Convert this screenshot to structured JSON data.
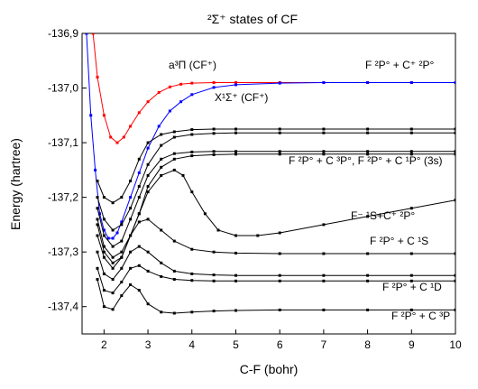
{
  "chart_data": {
    "type": "line",
    "title": "²Σ⁺ states of CF",
    "xlabel": "C-F (bohr)",
    "ylabel": "Energy (hartree)",
    "xlim": [
      1.5,
      10
    ],
    "ylim": [
      -137.45,
      -136.9
    ],
    "xticks": [
      2,
      3,
      4,
      5,
      6,
      7,
      8,
      9,
      10
    ],
    "yticks": [
      -136.9,
      -137.0,
      -137.1,
      -137.2,
      -137.3,
      -137.4
    ],
    "xtick_labels": [
      "2",
      "3",
      "4",
      "5",
      "6",
      "7",
      "8",
      "9",
      "10"
    ],
    "ytick_labels": [
      "-136,9",
      "-137,0",
      "-137,1",
      "-137,2",
      "-137,3",
      "-137,4"
    ],
    "grid": false,
    "series": [
      {
        "name": "a³Π (CF⁺)",
        "color": "#ff0000",
        "x": [
          1.75,
          1.85,
          2.0,
          2.15,
          2.3,
          2.45,
          2.6,
          2.8,
          3.0,
          3.25,
          3.5,
          3.75,
          4.0,
          4.5,
          5.0,
          6.0,
          7.0,
          8.0,
          9.0,
          10.0
        ],
        "y": [
          -136.9,
          -136.98,
          -137.05,
          -137.09,
          -137.1,
          -137.09,
          -137.07,
          -137.045,
          -137.025,
          -137.008,
          -136.998,
          -136.993,
          -136.991,
          -136.99,
          -136.99,
          -136.99,
          -136.99,
          -136.99,
          -136.99,
          -136.99
        ]
      },
      {
        "name": "X¹Σ⁺ (CF⁺)",
        "color": "#0000ff",
        "x": [
          1.6,
          1.7,
          1.8,
          1.9,
          2.0,
          2.1,
          2.2,
          2.3,
          2.4,
          2.6,
          2.8,
          3.0,
          3.25,
          3.5,
          3.75,
          4.0,
          4.5,
          5.0,
          6.0,
          7.0,
          8.0,
          9.0,
          10.0
        ],
        "y": [
          -136.9,
          -137.05,
          -137.15,
          -137.23,
          -137.26,
          -137.275,
          -137.275,
          -137.265,
          -137.245,
          -137.2,
          -137.155,
          -137.11,
          -137.07,
          -137.042,
          -137.025,
          -137.012,
          -136.999,
          -136.994,
          -136.991,
          -136.99,
          -136.99,
          -136.99,
          -136.99
        ]
      },
      {
        "color": "#000000",
        "x": [
          1.85,
          2.0,
          2.2,
          2.4,
          2.6,
          2.8,
          3.0,
          3.3,
          3.6,
          4.0,
          4.5,
          5.0,
          6.0,
          7.0,
          8.0,
          9.0,
          10.0
        ],
        "y": [
          -137.17,
          -137.2,
          -137.21,
          -137.2,
          -137.17,
          -137.13,
          -137.1,
          -137.085,
          -137.08,
          -137.076,
          -137.075,
          -137.075,
          -137.075,
          -137.075,
          -137.075,
          -137.075,
          -137.075
        ]
      },
      {
        "color": "#000000",
        "x": [
          1.85,
          2.0,
          2.2,
          2.4,
          2.6,
          2.8,
          3.0,
          3.3,
          3.6,
          4.0,
          4.5,
          5.0,
          6.0,
          7.0,
          8.0,
          9.0,
          10.0
        ],
        "y": [
          -137.2,
          -137.24,
          -137.26,
          -137.25,
          -137.22,
          -137.18,
          -137.14,
          -137.105,
          -137.09,
          -137.085,
          -137.083,
          -137.082,
          -137.082,
          -137.082,
          -137.082,
          -137.082,
          -137.082
        ]
      },
      {
        "color": "#000000",
        "x": [
          1.85,
          2.0,
          2.2,
          2.4,
          2.6,
          2.8,
          3.0,
          3.3,
          3.6,
          4.0,
          4.5,
          5.0,
          6.0,
          7.0,
          8.0,
          9.0,
          10.0
        ],
        "y": [
          -137.22,
          -137.27,
          -137.29,
          -137.28,
          -137.24,
          -137.2,
          -137.16,
          -137.13,
          -137.12,
          -137.117,
          -137.116,
          -137.116,
          -137.116,
          -137.116,
          -137.116,
          -137.116,
          -137.116
        ]
      },
      {
        "color": "#000000",
        "x": [
          1.85,
          2.0,
          2.2,
          2.4,
          2.6,
          2.8,
          3.0,
          3.3,
          3.6,
          4.0,
          4.5,
          5.0,
          6.0,
          7.0,
          8.0,
          9.0,
          10.0
        ],
        "y": [
          -137.24,
          -137.29,
          -137.31,
          -137.3,
          -137.27,
          -137.23,
          -137.18,
          -137.145,
          -137.13,
          -137.124,
          -137.122,
          -137.121,
          -137.121,
          -137.121,
          -137.121,
          -137.121,
          -137.121
        ]
      },
      {
        "color": "#000000",
        "x": [
          1.85,
          2.0,
          2.2,
          2.4,
          2.6,
          2.8,
          3.0,
          3.3,
          3.6,
          3.8,
          4.0,
          4.3,
          4.6,
          5.0,
          5.5,
          6.0,
          7.0,
          8.0,
          9.0,
          10.0
        ],
        "y": [
          -137.25,
          -137.3,
          -137.32,
          -137.31,
          -137.27,
          -137.23,
          -137.19,
          -137.16,
          -137.15,
          -137.16,
          -137.19,
          -137.23,
          -137.26,
          -137.27,
          -137.27,
          -137.265,
          -137.25,
          -137.235,
          -137.22,
          -137.205
        ]
      },
      {
        "color": "#000000",
        "x": [
          1.85,
          2.0,
          2.2,
          2.4,
          2.6,
          2.8,
          3.0,
          3.3,
          3.6,
          4.0,
          4.5,
          5.0,
          6.0,
          7.0,
          8.0,
          9.0,
          10.0
        ],
        "y": [
          -137.27,
          -137.31,
          -137.33,
          -137.31,
          -137.27,
          -137.245,
          -137.24,
          -137.26,
          -137.28,
          -137.295,
          -137.3,
          -137.302,
          -137.303,
          -137.303,
          -137.303,
          -137.303,
          -137.303
        ]
      },
      {
        "color": "#000000",
        "x": [
          1.85,
          2.0,
          2.2,
          2.4,
          2.6,
          2.8,
          3.0,
          3.3,
          3.6,
          4.0,
          4.5,
          5.0,
          6.0,
          7.0,
          8.0,
          9.0,
          10.0
        ],
        "y": [
          -137.3,
          -137.34,
          -137.35,
          -137.33,
          -137.3,
          -137.29,
          -137.3,
          -137.32,
          -137.335,
          -137.34,
          -137.342,
          -137.343,
          -137.343,
          -137.343,
          -137.343,
          -137.343,
          -137.343
        ]
      },
      {
        "color": "#000000",
        "x": [
          1.85,
          2.0,
          2.2,
          2.4,
          2.6,
          2.8,
          3.0,
          3.3,
          3.6,
          4.0,
          4.5,
          5.0,
          6.0,
          7.0,
          8.0,
          9.0,
          10.0
        ],
        "y": [
          -137.33,
          -137.37,
          -137.375,
          -137.355,
          -137.33,
          -137.325,
          -137.335,
          -137.345,
          -137.35,
          -137.352,
          -137.353,
          -137.353,
          -137.353,
          -137.353,
          -137.353,
          -137.353,
          -137.353
        ]
      },
      {
        "color": "#000000",
        "x": [
          1.85,
          2.0,
          2.2,
          2.4,
          2.6,
          2.8,
          3.0,
          3.3,
          3.6,
          4.0,
          4.5,
          5.0,
          6.0,
          7.0,
          8.0,
          9.0,
          10.0
        ],
        "y": [
          -137.35,
          -137.4,
          -137.405,
          -137.38,
          -137.36,
          -137.37,
          -137.395,
          -137.41,
          -137.412,
          -137.41,
          -137.408,
          -137.407,
          -137.406,
          -137.406,
          -137.406,
          -137.406,
          -137.406
        ]
      }
    ],
    "annotations": [
      {
        "id": "a3pi",
        "text": "a³Π (CF⁺)"
      },
      {
        "id": "x1sigma",
        "text": "X¹Σ⁺ (CF⁺)"
      },
      {
        "id": "asym1",
        "text": "F ²P° + C⁺ ²P°"
      },
      {
        "id": "asym2",
        "text": "F ²P° + C ³P°, F ²P° + C ¹P° (3s)"
      },
      {
        "id": "asym3",
        "text": "F⁻ ¹S+C⁺ ²P°"
      },
      {
        "id": "asym4",
        "text": "F ²P° + C ¹S"
      },
      {
        "id": "asym5",
        "text": "F ²P° + C ¹D"
      },
      {
        "id": "asym6",
        "text": "F ²P° + C ³P"
      }
    ]
  }
}
